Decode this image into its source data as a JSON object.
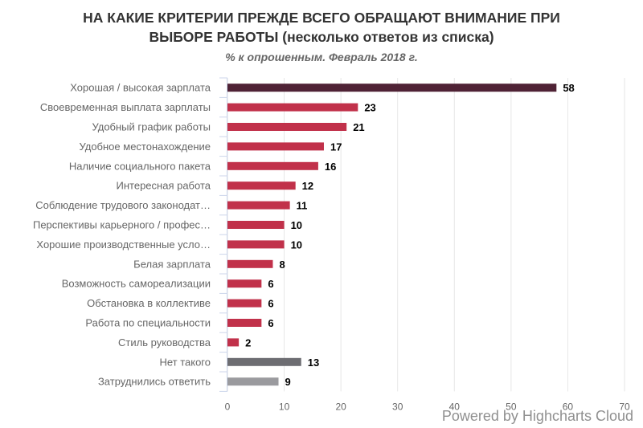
{
  "title_line1": "НА КАКИЕ КРИТЕРИИ ПРЕЖДЕ ВСЕГО ОБРАЩАЮТ ВНИМАНИЕ ПРИ",
  "title_line2": "ВЫБОРЕ РАБОТЫ (несколько ответов из списка)",
  "subtitle": "% к опрошенным. Февраль 2018 г.",
  "credits": "Powered by Highcharts Cloud",
  "colors": {
    "top": "#4f2235",
    "main": "#c1314a",
    "none": "#6d6d72",
    "dk": "#9a9a9e",
    "grid": "#e6e6e6",
    "axis_text": "#666666",
    "label_text": "#000000"
  },
  "chart_data": {
    "type": "bar",
    "orientation": "horizontal",
    "categories": [
      "Хорошая / высокая зарплата",
      "Своевременная выплата зарплаты",
      "Удобный график работы",
      "Удобное местонахождение",
      "Наличие социального пакета",
      "Интересная работа",
      "Соблюдение трудового законодат…",
      "Перспективы карьерного / профес…",
      "Хорошие производственные усло…",
      "Белая зарплата",
      "Возможность самореализации",
      "Обстановка в коллективе",
      "Работа по специальности",
      "Стиль руководства",
      "Нет такого",
      "Затруднились ответить"
    ],
    "values": [
      58,
      23,
      21,
      17,
      16,
      12,
      11,
      10,
      10,
      8,
      6,
      6,
      6,
      2,
      13,
      9
    ],
    "bar_color_keys": [
      "top",
      "main",
      "main",
      "main",
      "main",
      "main",
      "main",
      "main",
      "main",
      "main",
      "main",
      "main",
      "main",
      "main",
      "none",
      "dk"
    ],
    "xlim": [
      0,
      70
    ],
    "ticks": [
      "0",
      "10",
      "20",
      "30",
      "40",
      "50",
      "60",
      "70"
    ],
    "data_labels": true,
    "grid": true,
    "legend": "none"
  }
}
